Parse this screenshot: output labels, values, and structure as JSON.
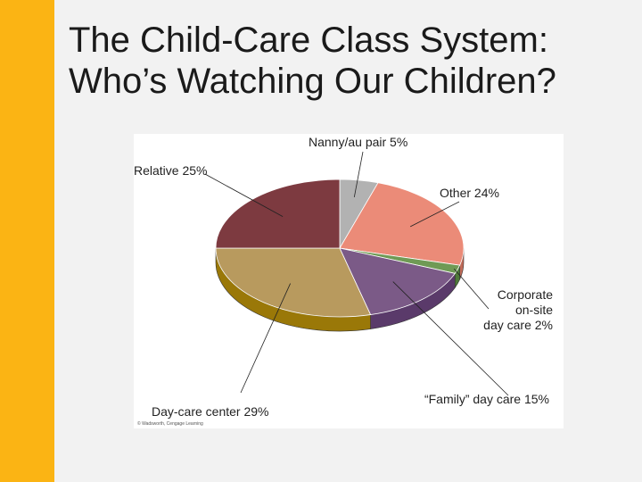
{
  "slide": {
    "title_line1": "The Child-Care Class System:",
    "title_line2": "Who’s Watching Our Children?"
  },
  "colors": {
    "sidebar": "#fbb414",
    "background": "#f2f2f2"
  },
  "chart_data": {
    "type": "pie",
    "title": "",
    "slices": [
      {
        "label": "Nanny/au pair 5%",
        "value": 5,
        "color": "#b2b2b2",
        "side": "#8f8f8f"
      },
      {
        "label": "Other 24%",
        "value": 24,
        "color": "#eb8b78",
        "side": "#c06a58"
      },
      {
        "label": "Corporate on-site day care 2%",
        "label_lines": [
          "Corporate",
          "on-site",
          "day care 2%"
        ],
        "value": 2,
        "color": "#6f9a55",
        "side": "#4f7a3a"
      },
      {
        "label": "“Family” day care 15%",
        "value": 15,
        "color": "#7b5a87",
        "side": "#5a3a6a"
      },
      {
        "label": "Day-care center 29%",
        "value": 29,
        "color": "#b89a5e",
        "side": "#9a7808"
      },
      {
        "label": "Relative 25%",
        "value": 25,
        "color": "#7d3a40",
        "side": "#5e2a2e"
      }
    ],
    "legend": "none",
    "credit": "© Wadsworth, Cengage Learning"
  }
}
